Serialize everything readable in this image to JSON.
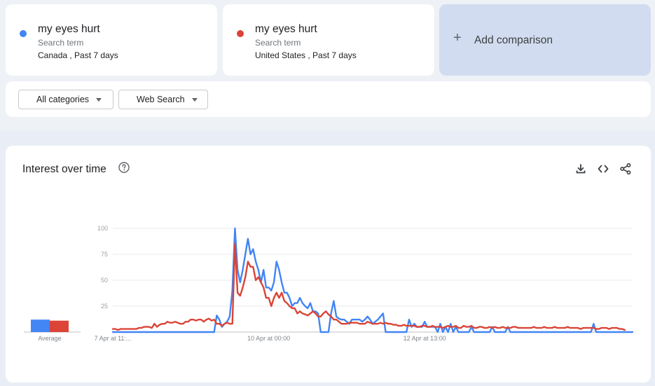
{
  "comparison": {
    "terms": [
      {
        "name": "my eyes hurt",
        "type": "Search term",
        "scope": "Canada , Past 7 days",
        "color": "#4285f4"
      },
      {
        "name": "my eyes hurt",
        "type": "Search term",
        "scope": "United States , Past 7 days",
        "color": "#db4437"
      }
    ],
    "add_label": "Add comparison",
    "add_icon": "+"
  },
  "filters": {
    "category": "All categories",
    "search_type": "Web Search"
  },
  "chart_card": {
    "title": "Interest over time",
    "icons": [
      "help-icon",
      "download-icon",
      "embed-icon",
      "share-icon"
    ]
  },
  "chart_data": {
    "type": "line",
    "title": "Interest over time",
    "ylim": [
      0,
      100
    ],
    "yticks": [
      "100",
      "75",
      "50",
      "25"
    ],
    "x_tick_labels": [
      "7 Apr at 11:...",
      "10 Apr at 00:00",
      "12 Apr at 13:00"
    ],
    "x_tick_positions": [
      0,
      60,
      120
    ],
    "average": {
      "label": "Average",
      "values": [
        12,
        11
      ]
    },
    "grid": true,
    "series": [
      {
        "color": "#4285f4",
        "values": [
          0,
          0,
          0,
          0,
          0,
          0,
          0,
          0,
          0,
          0,
          0,
          0,
          0,
          0,
          0,
          0,
          0,
          0,
          0,
          0,
          0,
          0,
          0,
          0,
          0,
          0,
          0,
          0,
          0,
          0,
          0,
          0,
          0,
          0,
          0,
          0,
          0,
          0,
          0,
          0,
          16,
          12,
          5,
          8,
          10,
          15,
          40,
          100,
          60,
          48,
          60,
          75,
          90,
          75,
          80,
          68,
          60,
          48,
          60,
          43,
          43,
          40,
          48,
          68,
          60,
          48,
          38,
          38,
          33,
          25,
          28,
          28,
          33,
          28,
          25,
          23,
          28,
          20,
          20,
          18,
          0,
          0,
          0,
          0,
          18,
          30,
          15,
          13,
          12,
          12,
          10,
          8,
          12,
          12,
          12,
          12,
          10,
          12,
          15,
          12,
          8,
          10,
          12,
          15,
          18,
          0,
          0,
          0,
          0,
          0,
          0,
          0,
          0,
          0,
          12,
          5,
          8,
          5,
          5,
          5,
          10,
          5,
          5,
          5,
          5,
          0,
          8,
          0,
          5,
          0,
          8,
          0,
          5,
          0,
          0,
          0,
          0,
          0,
          5,
          0,
          0,
          0,
          0,
          0,
          0,
          0,
          5,
          0,
          0,
          0,
          0,
          0,
          5,
          0,
          0,
          0,
          0,
          0,
          0,
          0,
          0,
          0,
          0,
          0,
          0,
          0,
          0,
          0,
          0,
          0,
          0,
          0,
          0,
          0,
          0,
          0,
          0,
          0,
          0,
          0,
          0,
          0,
          0,
          0,
          0,
          8,
          0,
          0,
          0,
          0,
          0,
          0,
          0,
          0,
          0,
          0,
          0,
          0,
          0,
          0,
          0
        ]
      },
      {
        "color": "#db4437",
        "values": [
          3,
          3,
          2,
          3,
          3,
          3,
          3,
          3,
          3,
          3,
          4,
          4,
          5,
          5,
          5,
          4,
          8,
          5,
          7,
          8,
          8,
          10,
          9,
          9,
          10,
          9,
          8,
          8,
          10,
          10,
          12,
          12,
          11,
          12,
          12,
          10,
          12,
          13,
          11,
          12,
          8,
          8,
          6,
          8,
          9,
          8,
          8,
          85,
          38,
          35,
          43,
          53,
          68,
          63,
          63,
          50,
          53,
          48,
          43,
          33,
          33,
          25,
          33,
          38,
          33,
          38,
          30,
          28,
          25,
          23,
          23,
          18,
          20,
          18,
          17,
          16,
          18,
          20,
          18,
          15,
          15,
          18,
          20,
          17,
          15,
          12,
          12,
          10,
          8,
          8,
          8,
          9,
          9,
          9,
          9,
          8,
          8,
          8,
          10,
          9,
          8,
          8,
          8,
          9,
          8,
          9,
          8,
          8,
          7,
          7,
          6,
          6,
          7,
          6,
          6,
          6,
          6,
          5,
          5,
          6,
          6,
          5,
          5,
          6,
          5,
          5,
          5,
          4,
          5,
          6,
          5,
          5,
          6,
          4,
          4,
          6,
          5,
          5,
          6,
          4,
          4,
          5,
          5,
          4,
          4,
          5,
          4,
          5,
          4,
          4,
          5,
          4,
          4,
          4,
          5,
          5,
          4,
          4,
          4,
          4,
          4,
          4,
          5,
          4,
          4,
          4,
          5,
          4,
          4,
          4,
          5,
          4,
          4,
          4,
          4,
          5,
          4,
          4,
          4,
          4,
          3,
          4,
          4,
          4,
          4,
          4,
          3,
          3,
          4,
          4,
          4,
          3,
          4,
          4,
          4,
          3,
          3,
          2
        ]
      }
    ]
  }
}
